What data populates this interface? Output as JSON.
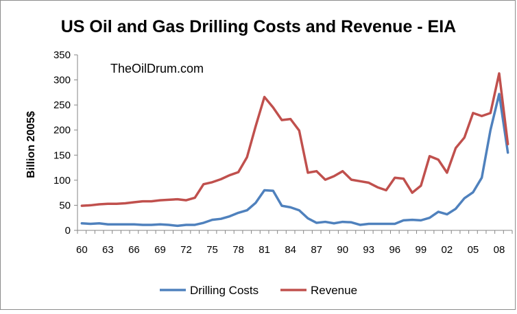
{
  "chart_data": {
    "type": "line",
    "title": "US Oil and Gas Drilling Costs and Revenue - EIA",
    "watermark": "TheOilDrum.com",
    "ylabel": "Billion 2005$",
    "xlabel": "",
    "ylim": [
      0,
      350
    ],
    "yticks": [
      0,
      50,
      100,
      150,
      200,
      250,
      300,
      350
    ],
    "x": [
      1960,
      1961,
      1962,
      1963,
      1964,
      1965,
      1966,
      1967,
      1968,
      1969,
      1970,
      1971,
      1972,
      1973,
      1974,
      1975,
      1976,
      1977,
      1978,
      1979,
      1980,
      1981,
      1982,
      1983,
      1984,
      1985,
      1986,
      1987,
      1988,
      1989,
      1990,
      1991,
      1992,
      1993,
      1994,
      1995,
      1996,
      1997,
      1998,
      1999,
      2000,
      2001,
      2002,
      2003,
      2004,
      2005,
      2006,
      2007,
      2008,
      2009
    ],
    "xtick_labels": [
      "60",
      "63",
      "66",
      "69",
      "72",
      "75",
      "78",
      "81",
      "84",
      "87",
      "90",
      "93",
      "96",
      "99",
      "02",
      "05",
      "08"
    ],
    "xtick_years": [
      1960,
      1963,
      1966,
      1969,
      1972,
      1975,
      1978,
      1981,
      1984,
      1987,
      1990,
      1993,
      1996,
      1999,
      2002,
      2005,
      2008
    ],
    "gridlines": false,
    "legend_position": "bottom",
    "series": [
      {
        "name": "Drilling Costs",
        "color": "#4f81bd",
        "values": [
          14,
          13,
          14,
          12,
          12,
          12,
          12,
          11,
          11,
          12,
          11,
          9,
          11,
          11,
          15,
          21,
          23,
          28,
          35,
          40,
          55,
          80,
          79,
          49,
          46,
          40,
          24,
          15,
          17,
          14,
          17,
          16,
          11,
          13,
          13,
          13,
          13,
          20,
          21,
          20,
          25,
          37,
          32,
          43,
          64,
          76,
          105,
          200,
          272,
          155
        ]
      },
      {
        "name": "Revenue",
        "color": "#c0504d",
        "values": [
          49,
          50,
          52,
          53,
          53,
          54,
          56,
          58,
          58,
          60,
          61,
          62,
          60,
          65,
          92,
          96,
          102,
          110,
          116,
          146,
          208,
          266,
          245,
          220,
          222,
          199,
          115,
          118,
          101,
          108,
          118,
          101,
          98,
          95,
          86,
          80,
          105,
          103,
          75,
          89,
          148,
          141,
          115,
          164,
          185,
          234,
          228,
          234,
          313,
          172
        ]
      }
    ]
  }
}
